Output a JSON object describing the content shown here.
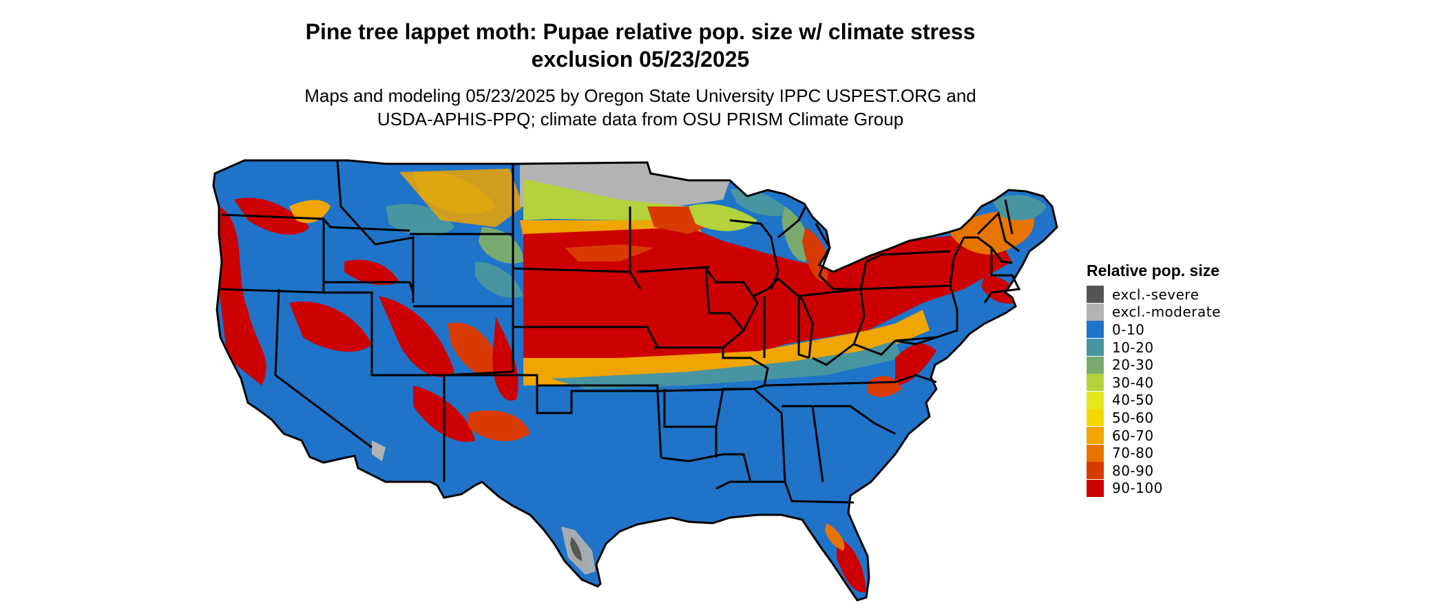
{
  "title_line1": "Pine tree lappet moth: Pupae relative pop. size w/ climate stress",
  "title_line2": "exclusion 05/23/2025",
  "subtitle_line1": "Maps and modeling 05/23/2025 by Oregon State University IPPC USPEST.ORG and",
  "subtitle_line2": "USDA-APHIS-PPQ; climate data from OSU PRISM Climate Group",
  "legend": {
    "title": "Relative pop. size",
    "items": [
      {
        "label": "excl.-severe",
        "color": "#555555"
      },
      {
        "label": "excl.-moderate",
        "color": "#b3b3b3"
      },
      {
        "label": "0-10",
        "color": "#1f74c9"
      },
      {
        "label": "10-20",
        "color": "#4795a0"
      },
      {
        "label": "20-30",
        "color": "#7aab6e"
      },
      {
        "label": "30-40",
        "color": "#b3d23c"
      },
      {
        "label": "40-50",
        "color": "#e2e81c"
      },
      {
        "label": "50-60",
        "color": "#f5d800"
      },
      {
        "label": "60-70",
        "color": "#f0a500"
      },
      {
        "label": "70-80",
        "color": "#e87400"
      },
      {
        "label": "80-90",
        "color": "#d93a00"
      },
      {
        "label": "90-100",
        "color": "#cc0000"
      }
    ]
  }
}
